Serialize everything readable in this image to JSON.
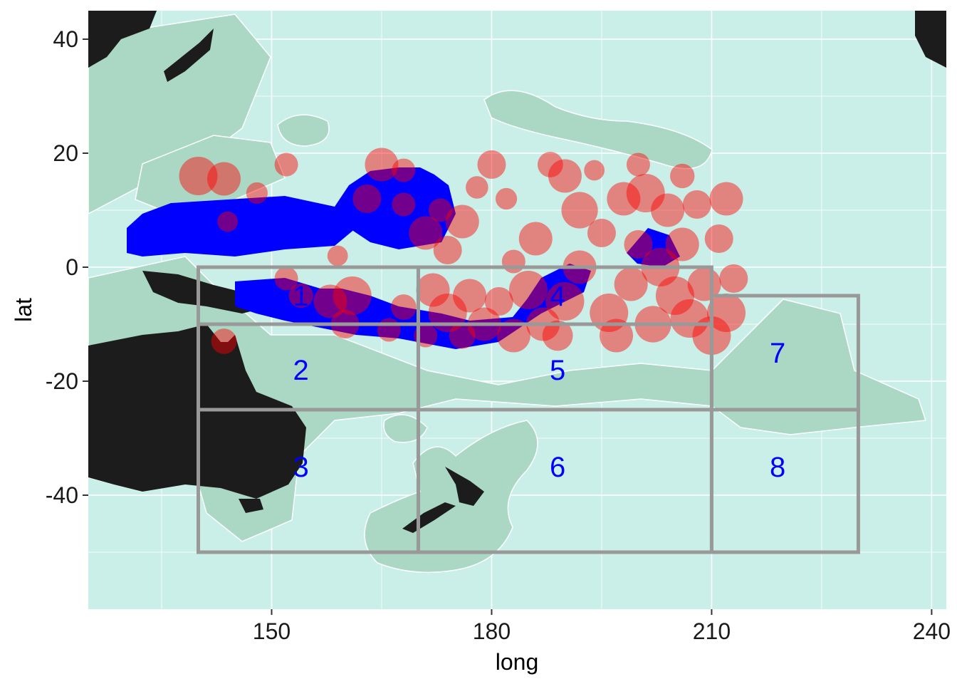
{
  "colors": {
    "ocean": "#c9efe8",
    "eez": "#aad8c5",
    "eez_border": "#ffffff",
    "land": "#1c1c1c",
    "gridline": "#ffffff",
    "purse_seine_zone": "#0000ff",
    "points": "#ff0000",
    "region_boxes": "#999999",
    "region_labels": "#0000ff"
  },
  "chart_data": {
    "type": "map",
    "xlabel": "long",
    "ylabel": "lat",
    "xlim": [
      125,
      242
    ],
    "ylim": [
      -60,
      45
    ],
    "x_ticks": [
      150,
      180,
      210,
      240
    ],
    "y_ticks": [
      -40,
      -20,
      0,
      20,
      40
    ],
    "x_tick_labels": [
      "150",
      "180",
      "210",
      "240"
    ],
    "y_tick_labels": [
      "-40",
      "-20",
      "0",
      "20",
      "40"
    ],
    "regions": [
      {
        "label": "1",
        "lon": [
          140,
          170
        ],
        "lat": [
          -10,
          0
        ],
        "label_at": [
          154,
          -5
        ]
      },
      {
        "label": "2",
        "lon": [
          140,
          170
        ],
        "lat": [
          -25,
          -10
        ],
        "label_at": [
          154,
          -18
        ]
      },
      {
        "label": "3",
        "lon": [
          140,
          170
        ],
        "lat": [
          -50,
          -25
        ],
        "label_at": [
          154,
          -35
        ]
      },
      {
        "label": "4",
        "lon": [
          170,
          210
        ],
        "lat": [
          -10,
          0
        ],
        "label_at": [
          189,
          -5
        ]
      },
      {
        "label": "5",
        "lon": [
          170,
          210
        ],
        "lat": [
          -25,
          -10
        ],
        "label_at": [
          189,
          -18
        ]
      },
      {
        "label": "6",
        "lon": [
          170,
          210
        ],
        "lat": [
          -50,
          -25
        ],
        "label_at": [
          189,
          -35
        ]
      },
      {
        "label": "7",
        "lon": [
          210,
          230
        ],
        "lat": [
          -25,
          -5
        ],
        "label_at": [
          219,
          -15
        ]
      },
      {
        "label": "8",
        "lon": [
          210,
          230
        ],
        "lat": [
          -50,
          -25
        ],
        "label_at": [
          219,
          -35
        ]
      }
    ],
    "catch_points": [
      {
        "lon": 140,
        "lat": 16,
        "size": 3
      },
      {
        "lon": 143.5,
        "lat": 15.5,
        "size": 2.5
      },
      {
        "lon": 148,
        "lat": 13,
        "size": 1.3
      },
      {
        "lon": 152,
        "lat": 18,
        "size": 1.5
      },
      {
        "lon": 144,
        "lat": 8,
        "size": 1.2
      },
      {
        "lon": 143.5,
        "lat": -13,
        "size": 1.7
      },
      {
        "lon": 152,
        "lat": -2,
        "size": 1.5
      },
      {
        "lon": 154,
        "lat": -5,
        "size": 1.6
      },
      {
        "lon": 158,
        "lat": -6,
        "size": 2.5
      },
      {
        "lon": 161,
        "lat": -5,
        "size": 3
      },
      {
        "lon": 160,
        "lat": -10,
        "size": 2
      },
      {
        "lon": 159,
        "lat": 2,
        "size": 1.2
      },
      {
        "lon": 165,
        "lat": 18,
        "size": 2.5
      },
      {
        "lon": 168,
        "lat": 17,
        "size": 1.5
      },
      {
        "lon": 163,
        "lat": 12,
        "size": 2
      },
      {
        "lon": 168,
        "lat": 11,
        "size": 1.5
      },
      {
        "lon": 171,
        "lat": 6,
        "size": 2.5
      },
      {
        "lon": 173,
        "lat": 10,
        "size": 1.5
      },
      {
        "lon": 176,
        "lat": 8,
        "size": 2.5
      },
      {
        "lon": 174,
        "lat": 3,
        "size": 2
      },
      {
        "lon": 168,
        "lat": -7,
        "size": 1.7
      },
      {
        "lon": 172,
        "lat": -4,
        "size": 2.5
      },
      {
        "lon": 174,
        "lat": -8,
        "size": 3
      },
      {
        "lon": 177,
        "lat": -5,
        "size": 2.5
      },
      {
        "lon": 179,
        "lat": -10,
        "size": 2.5
      },
      {
        "lon": 181,
        "lat": -6,
        "size": 2
      },
      {
        "lon": 182,
        "lat": 12,
        "size": 1.3
      },
      {
        "lon": 178,
        "lat": 14,
        "size": 1.4
      },
      {
        "lon": 180,
        "lat": 18,
        "size": 2
      },
      {
        "lon": 183,
        "lat": 1,
        "size": 1.5
      },
      {
        "lon": 185,
        "lat": -4,
        "size": 3
      },
      {
        "lon": 186,
        "lat": 5,
        "size": 2.5
      },
      {
        "lon": 187,
        "lat": -10,
        "size": 2.5
      },
      {
        "lon": 190,
        "lat": -6,
        "size": 3
      },
      {
        "lon": 192,
        "lat": 0,
        "size": 2.5
      },
      {
        "lon": 192,
        "lat": 10,
        "size": 2.8
      },
      {
        "lon": 190,
        "lat": 16,
        "size": 2.5
      },
      {
        "lon": 188,
        "lat": 18,
        "size": 1.7
      },
      {
        "lon": 194,
        "lat": 17,
        "size": 1.2
      },
      {
        "lon": 195,
        "lat": 6,
        "size": 2
      },
      {
        "lon": 196,
        "lat": -8,
        "size": 3
      },
      {
        "lon": 198,
        "lat": 12,
        "size": 2.5
      },
      {
        "lon": 199,
        "lat": -3,
        "size": 2.5
      },
      {
        "lon": 200,
        "lat": 4,
        "size": 2
      },
      {
        "lon": 201,
        "lat": 13,
        "size": 3
      },
      {
        "lon": 202,
        "lat": -10,
        "size": 2.8
      },
      {
        "lon": 203,
        "lat": 0,
        "size": 3
      },
      {
        "lon": 204,
        "lat": 10,
        "size": 2.5
      },
      {
        "lon": 205,
        "lat": -5,
        "size": 3
      },
      {
        "lon": 206,
        "lat": 16,
        "size": 1.6
      },
      {
        "lon": 206,
        "lat": 4,
        "size": 2.5
      },
      {
        "lon": 207,
        "lat": -9,
        "size": 3
      },
      {
        "lon": 208,
        "lat": 11,
        "size": 2
      },
      {
        "lon": 209,
        "lat": -3,
        "size": 2.5
      },
      {
        "lon": 210,
        "lat": -12,
        "size": 3
      },
      {
        "lon": 211,
        "lat": 5,
        "size": 2
      },
      {
        "lon": 212,
        "lat": -8,
        "size": 3
      },
      {
        "lon": 212,
        "lat": 12,
        "size": 2.5
      },
      {
        "lon": 213,
        "lat": -2,
        "size": 2
      },
      {
        "lon": 200,
        "lat": 18,
        "size": 1.5
      },
      {
        "lon": 197,
        "lat": -12,
        "size": 2.5
      },
      {
        "lon": 189,
        "lat": -12,
        "size": 2.2
      },
      {
        "lon": 183,
        "lat": -12,
        "size": 2.5
      },
      {
        "lon": 176,
        "lat": -12,
        "size": 1.8
      },
      {
        "lon": 166,
        "lat": -11,
        "size": 1.5
      },
      {
        "lon": 171,
        "lat": -12,
        "size": 1.5
      }
    ]
  }
}
